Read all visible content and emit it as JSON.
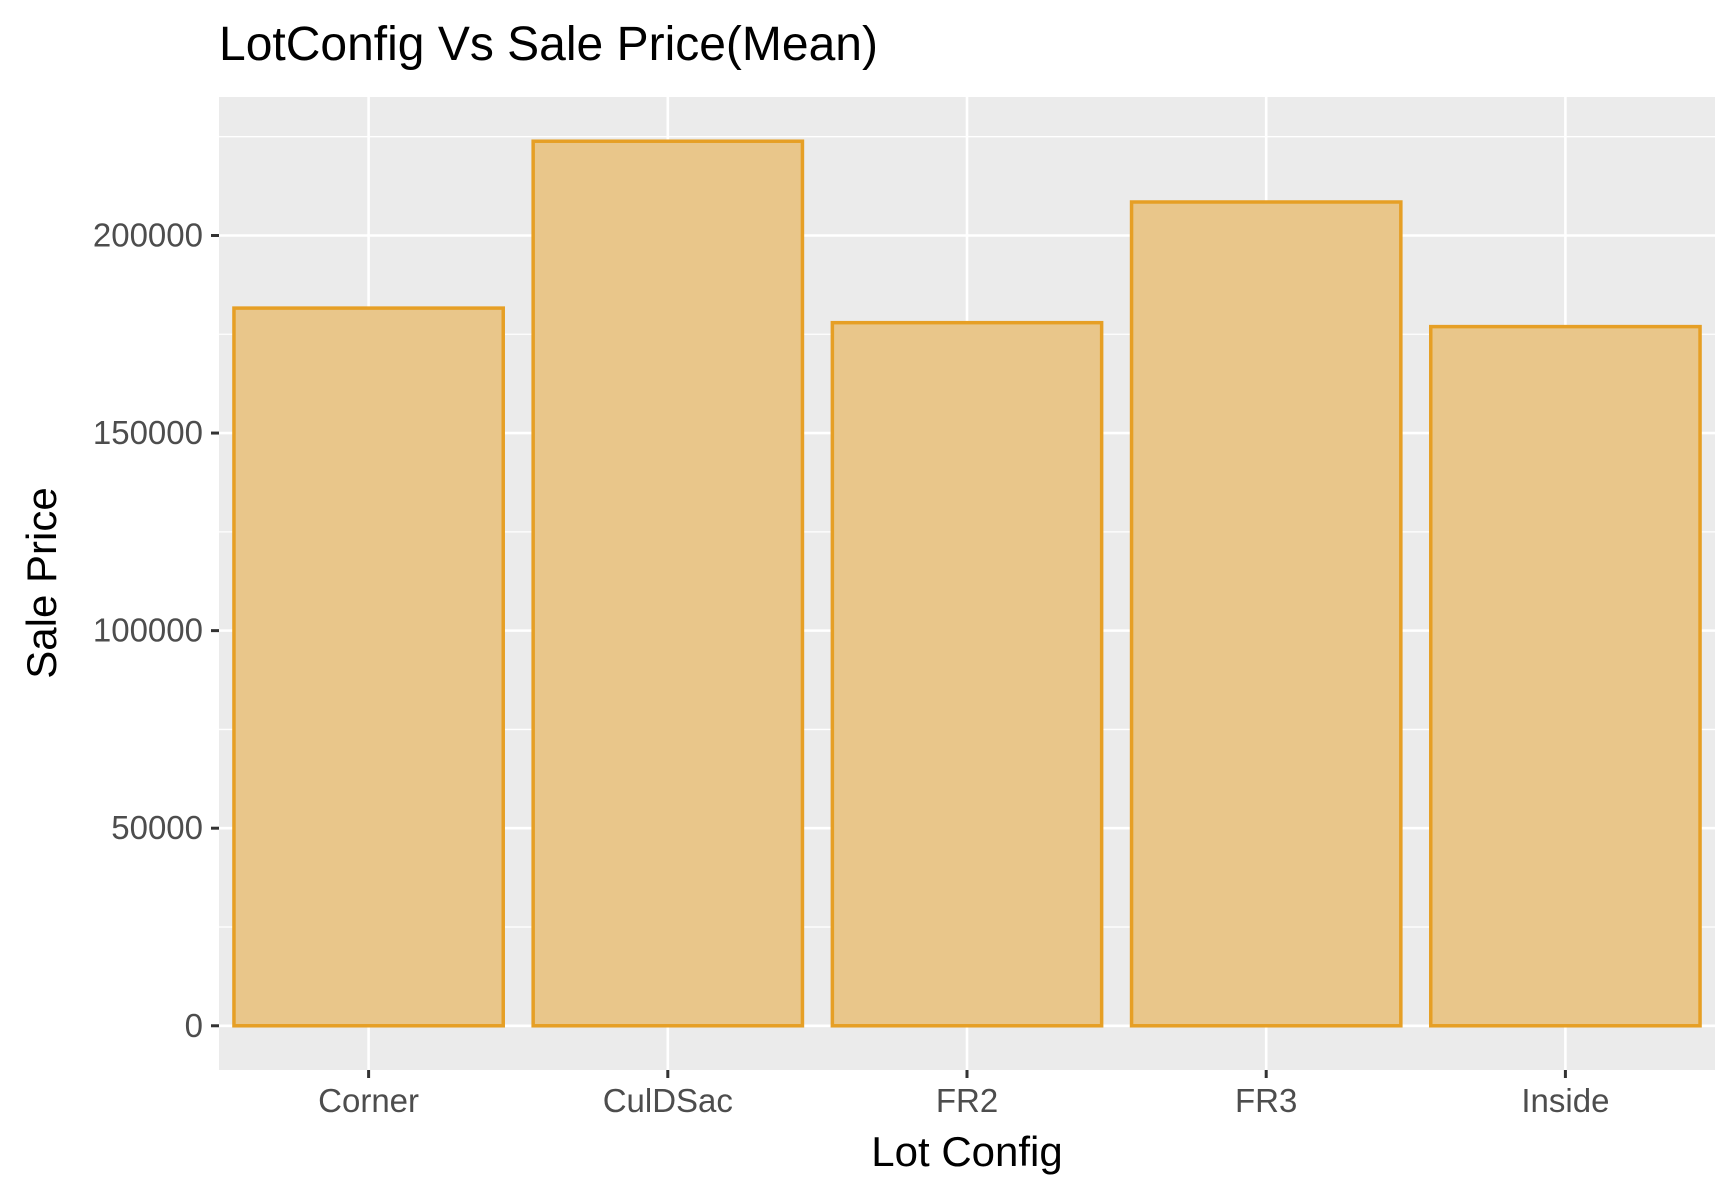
{
  "chart_data": {
    "type": "bar",
    "title": "LotConfig Vs Sale Price(Mean)",
    "xlabel": "Lot Config",
    "ylabel": "Sale Price",
    "categories": [
      "Corner",
      "CulDSac",
      "FR2",
      "FR3",
      "Inside"
    ],
    "values": [
      181623,
      223855,
      177935,
      208475,
      176938
    ],
    "ylim": [
      -11193,
      235048
    ],
    "yticks": [
      0,
      50000,
      100000,
      150000,
      200000
    ],
    "ytick_labels": [
      "0",
      "50000",
      "100000",
      "150000",
      "200000"
    ],
    "grid": true,
    "colors": {
      "panel_background": "#ebebeb",
      "grid": "#ffffff",
      "bar_fill": "#e9c68a",
      "bar_stroke": "#e69f25",
      "tick_mark": "#333333"
    }
  }
}
